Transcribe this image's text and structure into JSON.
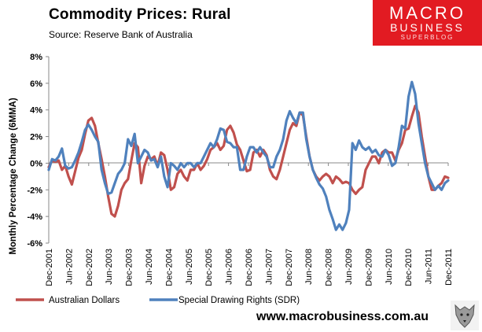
{
  "header": {
    "title": "Commodity  Prices: Rural",
    "source": "Source:  Reserve Bank of Australia"
  },
  "logo": {
    "line1": "MACRO",
    "line2": "BUSINESS",
    "line3": "SUPERBLOG"
  },
  "footer": {
    "url": "www.macrobusiness.com.au"
  },
  "colors": {
    "aud": "#c0504d",
    "sdr": "#4f81bd",
    "logo_bg": "#e21b22"
  },
  "chart_data": {
    "type": "line",
    "title": "Commodity  Prices: Rural",
    "ylabel": "Monthly Percentage Change (6MMA)",
    "xlabel": "",
    "ylim": [
      -6,
      8
    ],
    "yticks": [
      "8%",
      "6%",
      "4%",
      "2%",
      "0%",
      "-2%",
      "-4%",
      "-6%"
    ],
    "yticks_values": [
      8,
      6,
      4,
      2,
      0,
      -2,
      -4,
      -6
    ],
    "x_start": "Dec-2001",
    "x_end": "Dec-2011",
    "xtick_labels": [
      "Dec-2001",
      "Jun-2002",
      "Dec-2002",
      "Jun-2003",
      "Dec-2003",
      "Jun-2004",
      "Dec-2004",
      "Jun-2005",
      "Dec-2005",
      "Jun-2006",
      "Dec-2006",
      "Jun-2007",
      "Dec-2007",
      "Jun-2008",
      "Dec-2008",
      "Jun-2009",
      "Dec-2009",
      "Jun-2010",
      "Dec-2010",
      "Jun-2011",
      "Dec-2011"
    ],
    "grid": false,
    "legend": "bottom",
    "series": [
      {
        "name": "Australian Dollars",
        "color": "#c0504d",
        "values": [
          -0.3,
          0.2,
          0.1,
          0.2,
          -0.5,
          -0.2,
          -1.0,
          -1.6,
          -0.6,
          0.4,
          1.0,
          2.2,
          3.2,
          3.4,
          2.8,
          1.5,
          0.3,
          -1.0,
          -2.5,
          -3.8,
          -4.0,
          -3.2,
          -2.0,
          -1.5,
          -1.2,
          0.2,
          1.5,
          1.2,
          -1.5,
          -0.2,
          0.5,
          0.3,
          0.5,
          -0.2,
          0.8,
          0.6,
          -0.5,
          -2.0,
          -1.8,
          -0.8,
          -0.5,
          -1.0,
          -1.3,
          -0.5,
          -0.5,
          0.0,
          -0.5,
          -0.2,
          0.3,
          1.0,
          1.2,
          1.5,
          1.0,
          1.3,
          2.5,
          2.8,
          2.3,
          1.4,
          1.0,
          0.2,
          -0.6,
          -0.5,
          0.8,
          1.0,
          0.5,
          1.0,
          0.6,
          -0.5,
          -1.0,
          -1.2,
          -0.5,
          0.5,
          1.5,
          2.5,
          3.0,
          2.8,
          3.8,
          3.6,
          2.0,
          0.5,
          -0.5,
          -1.0,
          -1.3,
          -1.0,
          -0.8,
          -1.0,
          -1.5,
          -1.0,
          -1.2,
          -1.5,
          -1.4,
          -1.5,
          -2.0,
          -2.3,
          -2.0,
          -1.8,
          -0.5,
          0.0,
          0.5,
          0.5,
          0.0,
          0.8,
          1.0,
          0.8,
          0.8,
          0.2,
          1.0,
          1.5,
          2.5,
          2.6,
          3.5,
          4.3,
          3.8,
          2.0,
          0.5,
          -1.0,
          -2.0,
          -2.0,
          -1.7,
          -1.5,
          -1.0,
          -1.1
        ]
      },
      {
        "name": "Special Drawing Rights (SDR)",
        "color": "#4f81bd",
        "values": [
          -0.5,
          0.3,
          0.2,
          0.5,
          1.1,
          -0.2,
          -0.4,
          -0.3,
          0.2,
          0.8,
          1.6,
          2.5,
          2.9,
          2.5,
          2.0,
          1.6,
          -0.5,
          -1.5,
          -2.3,
          -2.2,
          -1.5,
          -0.8,
          -0.5,
          0.0,
          1.8,
          1.3,
          2.2,
          0.0,
          0.5,
          1.0,
          0.8,
          0.2,
          0.3,
          -0.3,
          0.5,
          -1.0,
          -1.8,
          0.0,
          -0.2,
          -0.5,
          0.0,
          -0.3,
          0.0,
          0.0,
          -0.3,
          0.0,
          0.0,
          0.5,
          1.0,
          1.5,
          1.2,
          1.8,
          2.6,
          2.5,
          1.6,
          1.5,
          1.2,
          1.2,
          -0.5,
          -0.5,
          0.5,
          1.2,
          1.2,
          0.8,
          1.2,
          0.8,
          0.5,
          -0.3,
          -0.3,
          0.5,
          1.0,
          1.8,
          3.2,
          3.9,
          3.4,
          3.0,
          3.8,
          3.8,
          1.8,
          0.5,
          -0.5,
          -1.1,
          -1.6,
          -1.9,
          -2.5,
          -3.5,
          -4.2,
          -5.0,
          -4.6,
          -5.0,
          -4.5,
          -3.5,
          1.5,
          1.0,
          1.7,
          1.2,
          1.0,
          1.2,
          0.8,
          1.0,
          0.6,
          0.5,
          1.0,
          0.6,
          -0.2,
          0.0,
          1.2,
          2.8,
          2.6,
          5.0,
          6.1,
          5.2,
          3.0,
          1.5,
          0.0,
          -1.0,
          -1.5,
          -2.0,
          -1.7,
          -2.0,
          -1.5,
          -1.3
        ]
      }
    ]
  }
}
